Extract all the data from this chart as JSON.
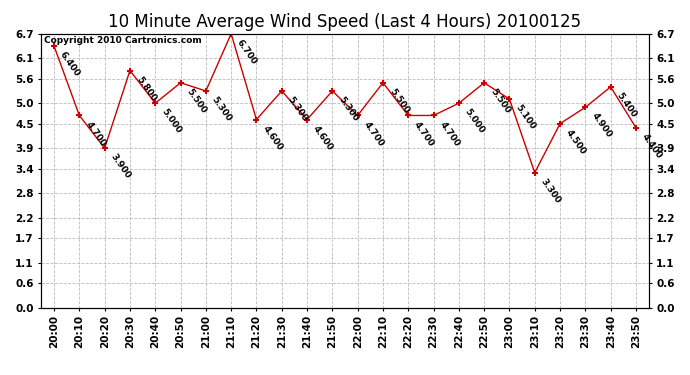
{
  "title": "10 Minute Average Wind Speed (Last 4 Hours) 20100125",
  "copyright": "Copyright 2010 Cartronics.com",
  "x_labels": [
    "20:00",
    "20:10",
    "20:20",
    "20:30",
    "20:40",
    "20:50",
    "21:00",
    "21:10",
    "21:20",
    "21:30",
    "21:40",
    "21:50",
    "22:00",
    "22:10",
    "22:20",
    "22:30",
    "22:40",
    "22:50",
    "23:00",
    "23:10",
    "23:20",
    "23:30",
    "23:40",
    "23:50"
  ],
  "y_values": [
    6.4,
    4.7,
    3.9,
    5.8,
    5.0,
    5.5,
    5.3,
    6.7,
    4.6,
    5.3,
    4.6,
    5.3,
    4.7,
    5.5,
    4.7,
    4.7,
    5.0,
    5.5,
    5.1,
    3.3,
    4.5,
    4.9,
    5.4,
    4.4
  ],
  "point_labels": [
    "6.400",
    "4.700",
    "3.900",
    "5.800",
    "5.000",
    "5.500",
    "5.300",
    "6.700",
    "4.600",
    "5.300",
    "4.600",
    "5.300",
    "4.700",
    "5.500",
    "4.700",
    "4.700",
    "5.000",
    "5.500",
    "5.100",
    "3.300",
    "4.500",
    "4.900",
    "5.400",
    "4.400"
  ],
  "line_color": "#cc0000",
  "marker_color": "#cc0000",
  "bg_color": "#ffffff",
  "grid_color": "#bbbbbb",
  "ylim_min": 0.0,
  "ylim_max": 6.7,
  "yticks": [
    0.0,
    0.6,
    1.1,
    1.7,
    2.2,
    2.8,
    3.4,
    3.9,
    4.5,
    5.0,
    5.6,
    6.1,
    6.7
  ],
  "title_fontsize": 12,
  "label_fontsize": 6.5,
  "copyright_fontsize": 6.5,
  "tick_fontsize": 7.5
}
